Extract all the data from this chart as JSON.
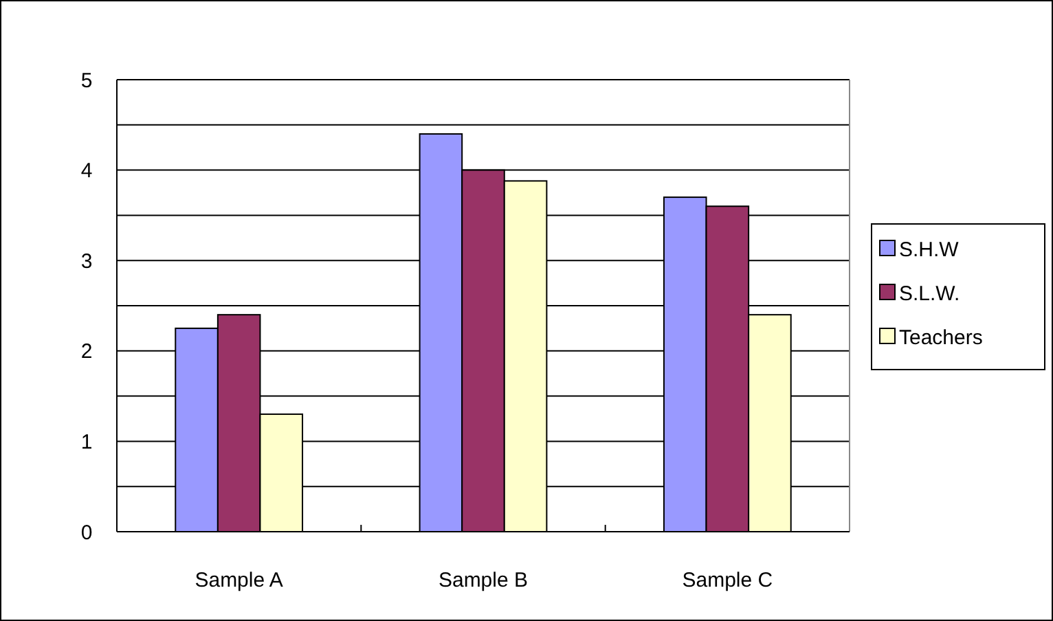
{
  "chart_data": {
    "type": "bar",
    "categories": [
      "Sample A",
      "Sample B",
      "Sample C"
    ],
    "series": [
      {
        "name": "S.H.W",
        "color": "#9999ff",
        "values": [
          2.25,
          4.4,
          3.7
        ]
      },
      {
        "name": "S.L.W.",
        "color": "#993366",
        "values": [
          2.4,
          4.0,
          3.6
        ]
      },
      {
        "name": "Teachers",
        "color": "#ffffcc",
        "values": [
          1.3,
          3.88,
          2.4
        ]
      }
    ],
    "ylim": [
      0,
      5
    ],
    "yticks": [
      0,
      {
        "value": 0.5,
        "label": null
      },
      1,
      {
        "value": 1.5,
        "label": null
      },
      2,
      {
        "value": 2.5,
        "label": null
      },
      3,
      {
        "value": 3.5,
        "label": null
      },
      4,
      {
        "value": 4.5,
        "label": null
      },
      5
    ],
    "grid": "y",
    "legend": "right"
  }
}
